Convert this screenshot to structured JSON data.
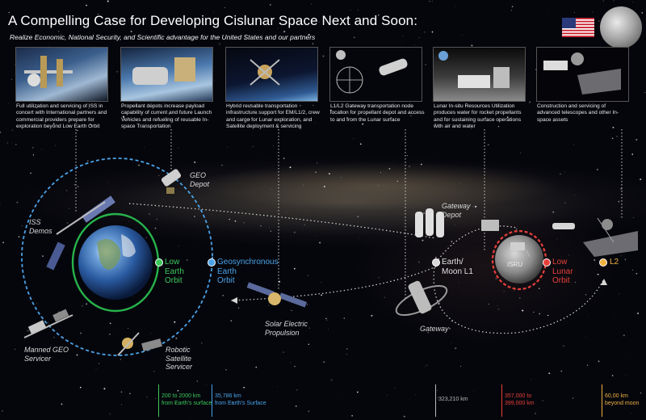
{
  "header": {
    "title": "A Compelling Case for Developing Cislunar Space Next and Soon:",
    "subtitle": "Realize Economic, National Security, and Scientific advantage for  the United States and our partners"
  },
  "panels": [
    {
      "caption": "Full utilization and servicing of ISS in concert with International partners and commercial providers prepare for exploration beyond Low Earth Orbit"
    },
    {
      "caption": "Propellant depots increase payload capability of current and future Launch Vehicles and refueling of reusable In-space Transportation"
    },
    {
      "caption": "Hybrid reusable transportation infrastructure support for EM/L1/2, crew and cargo for Lunar exploration, and Satellite deployment & servicing"
    },
    {
      "caption": "L1/L2 Gateway transportation node location for propellant depot and access to and from the Lunar surface"
    },
    {
      "caption": "Lunar In-situ Resources Utilization produces water for rocket propellants and for sustaining surface operations with air and water"
    },
    {
      "caption": "Construction and servicing of advanced telescopes and other In-space assets"
    }
  ],
  "labels": {
    "geo_depot": "GEO\nDepot",
    "iss_demos": "ISS\nDemos",
    "manned_geo": "Manned GEO\nServicer",
    "robotic": "Robotic\nSatellite\nServicer",
    "sep": "Solar Electric\nPropulsion",
    "gateway_depot": "Gateway\nDepot",
    "gateway": "Gateway",
    "isru": "ISRU"
  },
  "orbits": {
    "leo": {
      "label": "Low\nEarth\nOrbit",
      "color": "#3cc85a"
    },
    "geo": {
      "label": "Geosynchronous\nEarth\nOrbit",
      "color": "#4aa3e8"
    },
    "l1": {
      "label": "Earth/\nMoon L1",
      "color": "#d8d8d8"
    },
    "llo": {
      "label": "Low\nLunar\nOrbit",
      "color": "#e8403a"
    },
    "l2": {
      "label": "L2",
      "color": "#f0b040"
    }
  },
  "distances": [
    {
      "text": "200 to 2000 km\nfrom Earth's surface",
      "color": "#3cc85a"
    },
    {
      "text": "35,786 km\nfrom Earth's Surface",
      "color": "#4aa3e8"
    },
    {
      "text": "323,210 km",
      "color": "#b8b8b8"
    },
    {
      "text": "357,000 to\n399,000 km",
      "color": "#e8403a"
    },
    {
      "text": "60,00 km\nbeyond moon",
      "color": "#f0b040"
    }
  ]
}
